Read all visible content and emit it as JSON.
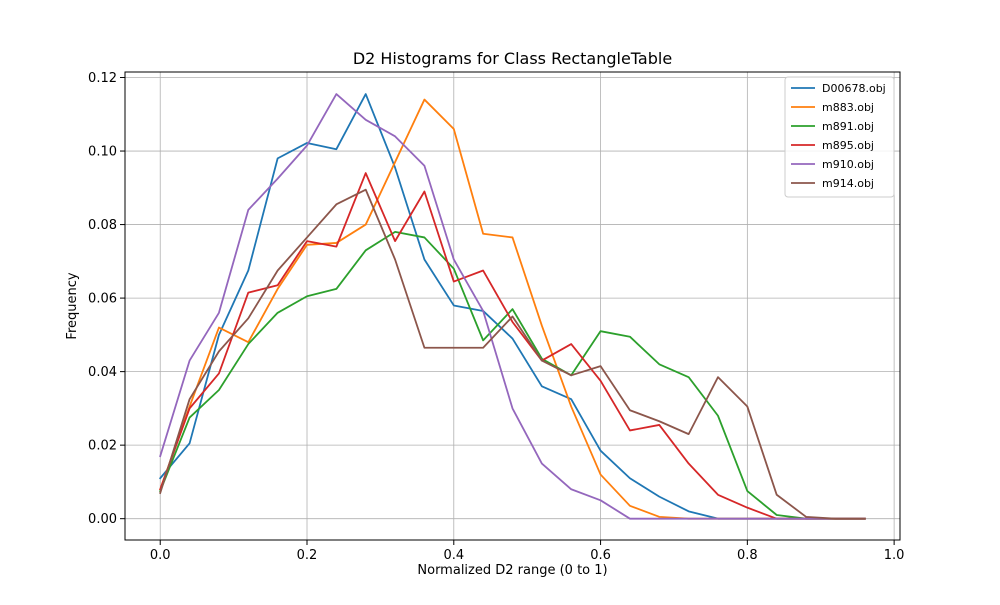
{
  "chart_data": {
    "type": "line",
    "title": "D2 Histograms for Class RectangleTable",
    "xlabel": "Normalized D2 range (0 to 1)",
    "ylabel": "Frequency",
    "xlim": [
      -0.048,
      1.008
    ],
    "ylim": [
      -0.0058,
      0.1215
    ],
    "xticks": [
      0.0,
      0.2,
      0.4,
      0.6,
      0.8,
      1.0
    ],
    "xtick_labels": [
      "0.0",
      "0.2",
      "0.4",
      "0.6",
      "0.8",
      "1.0"
    ],
    "yticks": [
      0.0,
      0.02,
      0.04,
      0.06,
      0.08,
      0.1,
      0.12
    ],
    "ytick_labels": [
      "0.00",
      "0.02",
      "0.04",
      "0.06",
      "0.08",
      "0.10",
      "0.12"
    ],
    "grid": true,
    "legend_position": "top-right",
    "x": [
      0.0,
      0.04,
      0.08,
      0.12,
      0.16,
      0.2,
      0.24,
      0.28,
      0.32,
      0.36,
      0.4,
      0.44,
      0.48,
      0.52,
      0.56,
      0.6,
      0.64,
      0.68,
      0.72,
      0.76,
      0.8,
      0.84,
      0.88,
      0.92,
      0.96
    ],
    "series": [
      {
        "name": "D00678.obj",
        "color": "#1f77b4",
        "values": [
          0.011,
          0.0205,
          0.05,
          0.0675,
          0.098,
          0.1022,
          0.1005,
          0.1155,
          0.0955,
          0.0705,
          0.058,
          0.0565,
          0.049,
          0.036,
          0.0325,
          0.0185,
          0.011,
          0.006,
          0.002,
          0.0,
          0.0,
          0.0,
          0.0,
          0.0,
          0.0
        ]
      },
      {
        "name": "m883.obj",
        "color": "#ff7f0e",
        "values": [
          0.008,
          0.0305,
          0.052,
          0.048,
          0.0625,
          0.0745,
          0.075,
          0.08,
          0.097,
          0.114,
          0.106,
          0.0775,
          0.0765,
          0.0525,
          0.0305,
          0.012,
          0.0035,
          0.0005,
          0.0,
          0.0,
          0.0,
          0.0,
          0.0,
          0.0,
          0.0
        ]
      },
      {
        "name": "m891.obj",
        "color": "#2ca02c",
        "values": [
          0.0075,
          0.0275,
          0.035,
          0.0475,
          0.056,
          0.0605,
          0.0625,
          0.073,
          0.078,
          0.0765,
          0.068,
          0.0485,
          0.057,
          0.0435,
          0.039,
          0.051,
          0.0495,
          0.042,
          0.0385,
          0.028,
          0.0075,
          0.001,
          0.0,
          0.0,
          0.0
        ]
      },
      {
        "name": "m895.obj",
        "color": "#d62728",
        "values": [
          0.008,
          0.03,
          0.0395,
          0.0615,
          0.0635,
          0.0755,
          0.074,
          0.094,
          0.0755,
          0.089,
          0.0645,
          0.0675,
          0.0535,
          0.043,
          0.0475,
          0.0375,
          0.024,
          0.0255,
          0.015,
          0.0065,
          0.003,
          0.0,
          0.0,
          0.0,
          0.0
        ]
      },
      {
        "name": "m910.obj",
        "color": "#9467bd",
        "values": [
          0.017,
          0.043,
          0.056,
          0.084,
          0.0925,
          0.1015,
          0.1155,
          0.1085,
          0.104,
          0.096,
          0.0705,
          0.0565,
          0.03,
          0.015,
          0.008,
          0.005,
          0.0,
          0.0,
          0.0,
          0.0,
          0.0,
          0.0,
          0.0,
          0.0,
          0.0
        ]
      },
      {
        "name": "m914.obj",
        "color": "#8c564b",
        "values": [
          0.007,
          0.0325,
          0.0455,
          0.0545,
          0.0675,
          0.0765,
          0.0855,
          0.0895,
          0.0705,
          0.0465,
          0.0465,
          0.0465,
          0.055,
          0.043,
          0.039,
          0.0415,
          0.0295,
          0.0265,
          0.023,
          0.0385,
          0.0305,
          0.0065,
          0.0005,
          0.0,
          0.0
        ]
      }
    ]
  }
}
